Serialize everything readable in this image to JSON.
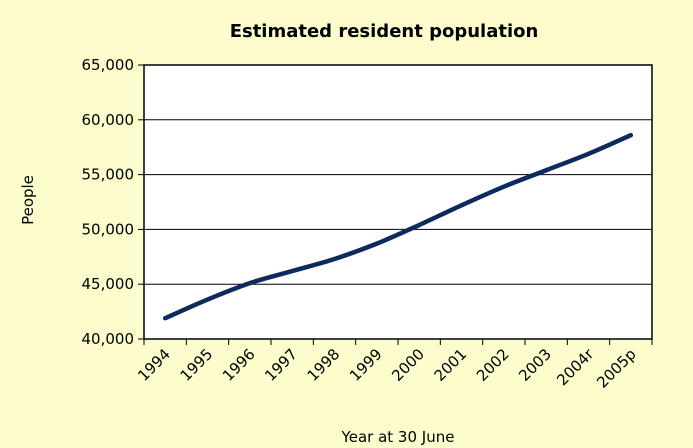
{
  "chart_data": {
    "type": "line",
    "title": "Estimated resident population",
    "xlabel": "Year at 30 June",
    "ylabel": "People",
    "ylim": [
      40000,
      65000
    ],
    "yticks": [
      40000,
      45000,
      50000,
      55000,
      60000,
      65000
    ],
    "ytick_labels": [
      "40,000",
      "45,000",
      "50,000",
      "55,000",
      "60,000",
      "65,000"
    ],
    "categories": [
      "1994",
      "1995",
      "1996",
      "1997",
      "1998",
      "1999",
      "2000",
      "2001",
      "2002",
      "2003",
      "2004r",
      "2005p"
    ],
    "series": [
      {
        "values": [
          41900,
          43600,
          45100,
          46200,
          47300,
          48700,
          50400,
          52200,
          53900,
          55400,
          56900,
          58600
        ]
      }
    ],
    "grid": "horizontal",
    "legend": "none",
    "colors": {
      "background": "#fcfccc",
      "plot_background": "#ffffff",
      "line": "#0d2a5c",
      "grid": "#000000"
    }
  }
}
